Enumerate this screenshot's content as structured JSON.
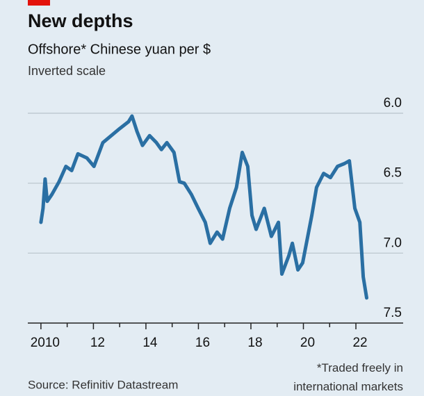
{
  "chart_data": {
    "type": "line",
    "title": "New depths",
    "subtitle": "Offshore* Chinese yuan per $",
    "axis_note": "Inverted scale",
    "source": "Source: Refinitiv Datastream",
    "footnote": "*Traded freely in international markets",
    "inverted_y": true,
    "grid": true,
    "xlim": [
      2009.5,
      2023.8
    ],
    "ylim": [
      6.0,
      7.5
    ],
    "yticks": [
      {
        "value": 6,
        "label": "6.0"
      },
      6.5,
      {
        "value": 7,
        "label": "7.0"
      },
      7.5
    ],
    "xticks": [
      2010,
      {
        "value": 2012,
        "label": "12"
      },
      {
        "value": 2014,
        "label": "14"
      },
      {
        "value": 2016,
        "label": "16"
      },
      {
        "value": 2018,
        "label": "18"
      },
      {
        "value": 2020,
        "label": "20"
      },
      {
        "value": 2022,
        "label": "22"
      }
    ],
    "xminor_ticks": [
      2011,
      2013,
      2015,
      2017,
      2019,
      2021
    ],
    "series": [
      {
        "color": "#2a6fa3",
        "x": [
          2010.0,
          2010.08,
          2010.16,
          2010.24,
          2010.42,
          2010.69,
          2010.95,
          2011.17,
          2011.41,
          2011.75,
          2012.02,
          2012.36,
          2012.68,
          2013.0,
          2013.34,
          2013.47,
          2013.66,
          2013.87,
          2014.14,
          2014.4,
          2014.59,
          2014.8,
          2015.07,
          2015.28,
          2015.46,
          2015.73,
          2015.99,
          2016.26,
          2016.45,
          2016.71,
          2016.92,
          2017.19,
          2017.45,
          2017.67,
          2017.88,
          2018.04,
          2018.2,
          2018.51,
          2018.78,
          2019.05,
          2019.18,
          2019.44,
          2019.58,
          2019.79,
          2019.97,
          2020.32,
          2020.5,
          2020.77,
          2021.03,
          2021.3,
          2021.56,
          2021.75,
          2021.96,
          2022.15,
          2022.28,
          2022.41
        ],
        "values": [
          6.78,
          6.68,
          6.47,
          6.63,
          6.58,
          6.49,
          6.38,
          6.41,
          6.29,
          6.32,
          6.38,
          6.21,
          6.16,
          6.11,
          6.06,
          6.02,
          6.13,
          6.23,
          6.16,
          6.21,
          6.26,
          6.21,
          6.28,
          6.49,
          6.5,
          6.58,
          6.68,
          6.78,
          6.93,
          6.85,
          6.9,
          6.68,
          6.53,
          6.28,
          6.38,
          6.73,
          6.83,
          6.68,
          6.88,
          6.78,
          7.15,
          7.02,
          6.93,
          7.12,
          7.07,
          6.73,
          6.53,
          6.43,
          6.46,
          6.38,
          6.36,
          6.34,
          6.68,
          6.78,
          7.17,
          7.32
        ]
      }
    ]
  }
}
